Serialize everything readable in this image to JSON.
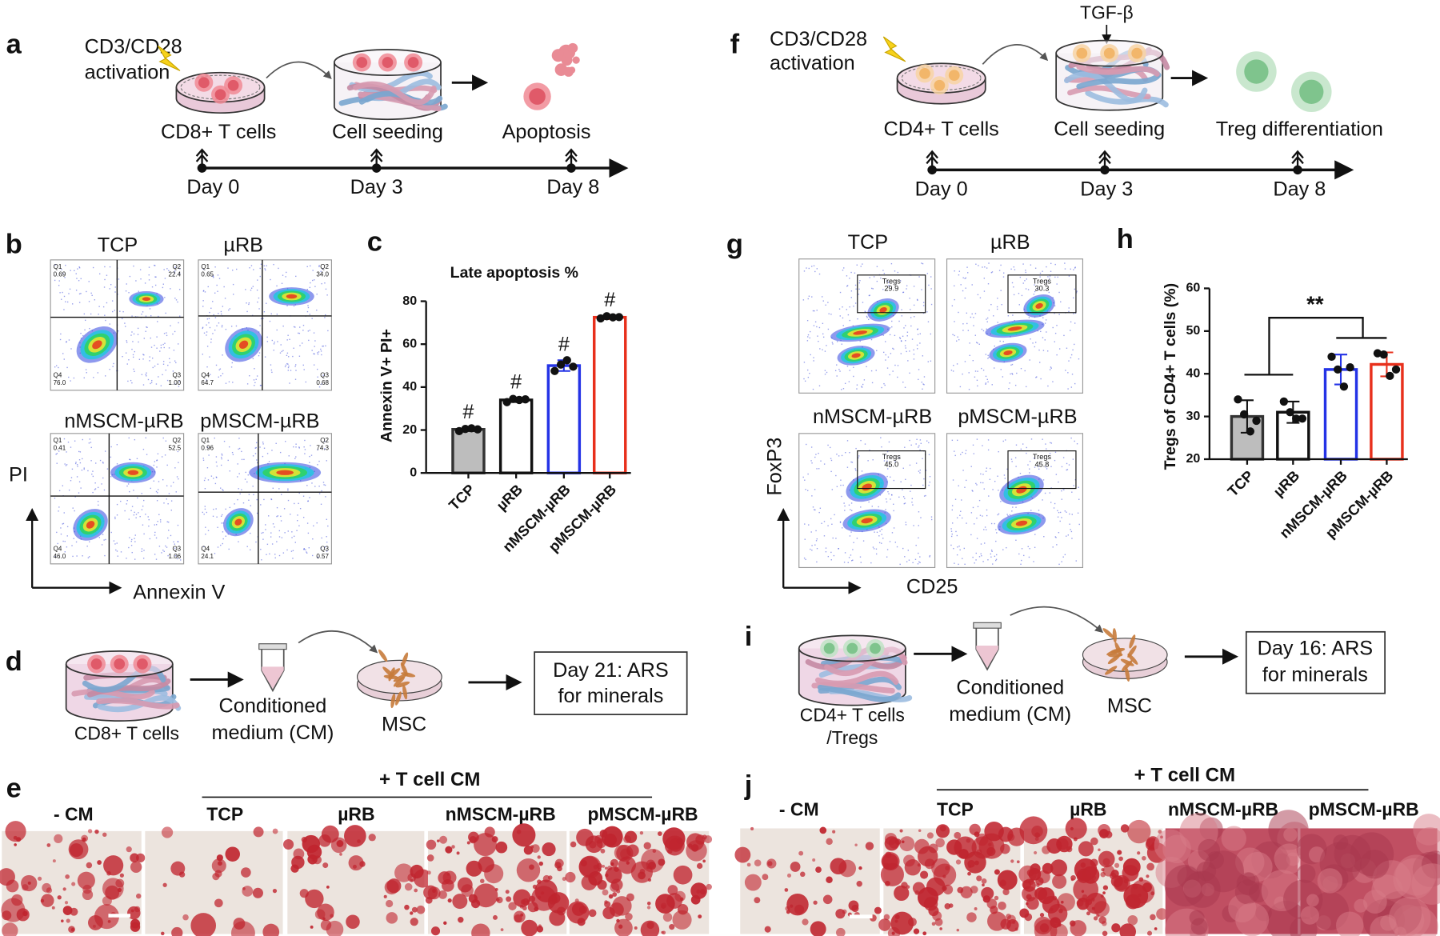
{
  "panels": {
    "a": {
      "label": "a",
      "activation": [
        "CD3/CD28",
        "activation"
      ],
      "stages": [
        "CD8+ T cells",
        "Cell seeding",
        "Apoptosis"
      ],
      "days": [
        "Day 0",
        "Day 3",
        "Day 8"
      ]
    },
    "f": {
      "label": "f",
      "activation": [
        "CD3/CD28",
        "activation"
      ],
      "factor": "TGF-β",
      "stages": [
        "CD4+ T cells",
        "Cell seeding",
        "Treg differentiation"
      ],
      "days": [
        "Day 0",
        "Day 3",
        "Day 8"
      ]
    },
    "b": {
      "label": "b",
      "y_axis": "PI",
      "x_axis": "Annexin V",
      "plots": [
        {
          "title": "TCP",
          "gates": [
            {
              "name": "Q1",
              "value": "0.69"
            },
            {
              "name": "Q2",
              "value": "22.4"
            },
            {
              "name": "Q4",
              "value": "76.0"
            },
            {
              "name": "Q3",
              "value": "1.00"
            }
          ]
        },
        {
          "title": "µRB",
          "gates": [
            {
              "name": "Q1",
              "value": "0.65"
            },
            {
              "name": "Q2",
              "value": "34.0"
            },
            {
              "name": "Q4",
              "value": "64.7"
            },
            {
              "name": "Q3",
              "value": "0.68"
            }
          ]
        },
        {
          "title": "nMSCM-µRB",
          "gates": [
            {
              "name": "Q1",
              "value": "0.41"
            },
            {
              "name": "Q2",
              "value": "52.5"
            },
            {
              "name": "Q4",
              "value": "46.0"
            },
            {
              "name": "Q3",
              "value": "1.06"
            }
          ]
        },
        {
          "title": "pMSCM-µRB",
          "gates": [
            {
              "name": "Q1",
              "value": "0.96"
            },
            {
              "name": "Q2",
              "value": "74.3"
            },
            {
              "name": "Q4",
              "value": "24.1"
            },
            {
              "name": "Q3",
              "value": "0.57"
            }
          ]
        }
      ]
    },
    "c": {
      "label": "c"
    },
    "g": {
      "label": "g",
      "y_axis": "FoxP3",
      "x_axis": "CD25",
      "plots": [
        {
          "title": "TCP",
          "gate": "Tregs",
          "value": "29.9"
        },
        {
          "title": "µRB",
          "gate": "Tregs",
          "value": "30.3"
        },
        {
          "title": "nMSCM-µRB",
          "gate": "Tregs",
          "value": "45.0"
        },
        {
          "title": "pMSCM-µRB",
          "gate": "Tregs",
          "value": "45.8"
        }
      ]
    },
    "h": {
      "label": "h"
    },
    "d": {
      "label": "d",
      "source": [
        "CD8+ T cells"
      ],
      "medium": [
        "Conditioned",
        "medium (CM)"
      ],
      "target": "MSC",
      "readout": [
        "Day 21: ARS",
        "for minerals"
      ]
    },
    "i": {
      "label": "i",
      "source": [
        "CD4+ T cells",
        "/Tregs"
      ],
      "medium": [
        "Conditioned",
        "medium (CM)"
      ],
      "target": "MSC",
      "readout": [
        "Day 16: ARS",
        "for minerals"
      ]
    },
    "e": {
      "label": "e",
      "control": "- CM",
      "group": "+ T cell CM",
      "conditions": [
        "TCP",
        "µRB",
        "nMSCM-µRB",
        "pMSCM-µRB"
      ]
    },
    "j": {
      "label": "j",
      "control": "- CM",
      "group": "+ T cell CM",
      "conditions": [
        "TCP",
        "µRB",
        "nMSCM-µRB",
        "pMSCM-µRB"
      ]
    }
  },
  "chart_data": [
    {
      "type": "bar",
      "title": "Late apoptosis %",
      "y_label": "Annexin V+ PI+",
      "categories": [
        "TCP",
        "µRB",
        "nMSCM-µRB",
        "pMSCM-µRB"
      ],
      "values": [
        20.3,
        34,
        50,
        72.5
      ],
      "errors": [
        0.8,
        1,
        2.5,
        0.8
      ],
      "points": [
        [
          19.5,
          20.5,
          20.8,
          20.3
        ],
        [
          33,
          34.5,
          34,
          34.3
        ],
        [
          47.5,
          50.5,
          52.5,
          49.5
        ],
        [
          72,
          73,
          72.5,
          72.6
        ]
      ],
      "colors": [
        "#333333",
        "#111111",
        "#2433e6",
        "#e8301c"
      ],
      "fills": [
        "#bdbdbd",
        "#ffffff",
        "#ffffff",
        "#ffffff"
      ],
      "annotations": [
        "#",
        "#",
        "#",
        "#"
      ],
      "ylim": [
        0,
        80
      ],
      "yticks": [
        0,
        20,
        40,
        60,
        80
      ]
    },
    {
      "type": "bar",
      "y_label": "Tregs of CD4+ T cells (%)",
      "categories": [
        "TCP",
        "µRB",
        "nMSCM-µRB",
        "pMSCM-µRB"
      ],
      "values": [
        30,
        31,
        41,
        42.2
      ],
      "errors": [
        3.8,
        2.5,
        3.5,
        2.8
      ],
      "points": [
        [
          34,
          30.5,
          26.5,
          29
        ],
        [
          33.5,
          31,
          29.5,
          29.5
        ],
        [
          44,
          41,
          37,
          41.5
        ],
        [
          44.8,
          44.5,
          39.5,
          41
        ]
      ],
      "colors": [
        "#333333",
        "#111111",
        "#2433e6",
        "#e8301c"
      ],
      "fills": [
        "#bdbdbd",
        "#ffffff",
        "#ffffff",
        "#ffffff"
      ],
      "annotation": "**",
      "ylim": [
        20,
        60
      ],
      "yticks": [
        20,
        30,
        40,
        50,
        60
      ]
    }
  ]
}
